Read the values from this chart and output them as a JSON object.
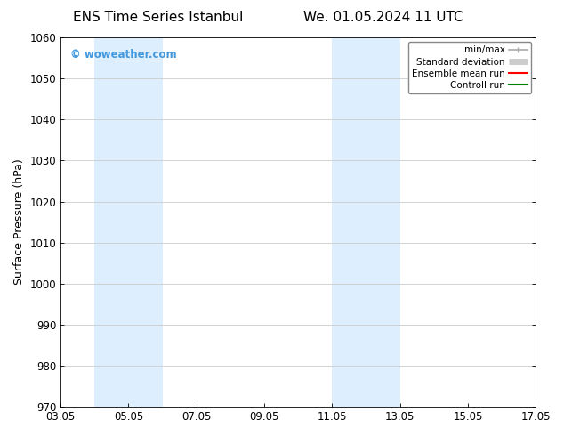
{
  "title_left": "ENS Time Series Istanbul",
  "title_right": "We. 01.05.2024 11 UTC",
  "ylabel": "Surface Pressure (hPa)",
  "ylim": [
    970,
    1060
  ],
  "yticks": [
    970,
    980,
    990,
    1000,
    1010,
    1020,
    1030,
    1040,
    1050,
    1060
  ],
  "xlim": [
    0,
    14
  ],
  "xtick_positions": [
    0,
    2,
    4,
    6,
    8,
    10,
    12,
    14
  ],
  "xtick_labels": [
    "03.05",
    "05.05",
    "07.05",
    "09.05",
    "11.05",
    "13.05",
    "15.05",
    "17.05"
  ],
  "watermark": "© woweather.com",
  "watermark_color": "#4499dd",
  "shaded_bands": [
    {
      "x_start": 1.0,
      "x_end": 3.0
    },
    {
      "x_start": 8.0,
      "x_end": 10.0
    }
  ],
  "shaded_color": "#ddeeff",
  "legend_items": [
    {
      "label": "min/max",
      "color": "#aaaaaa",
      "lw": 1.2
    },
    {
      "label": "Standard deviation",
      "color": "#cccccc",
      "lw": 5
    },
    {
      "label": "Ensemble mean run",
      "color": "#ff0000",
      "lw": 1.5
    },
    {
      "label": "Controll run",
      "color": "#008000",
      "lw": 1.5
    }
  ],
  "bg_color": "#ffffff",
  "grid_color": "#cccccc",
  "title_fontsize": 11,
  "axis_fontsize": 9,
  "tick_fontsize": 8.5
}
